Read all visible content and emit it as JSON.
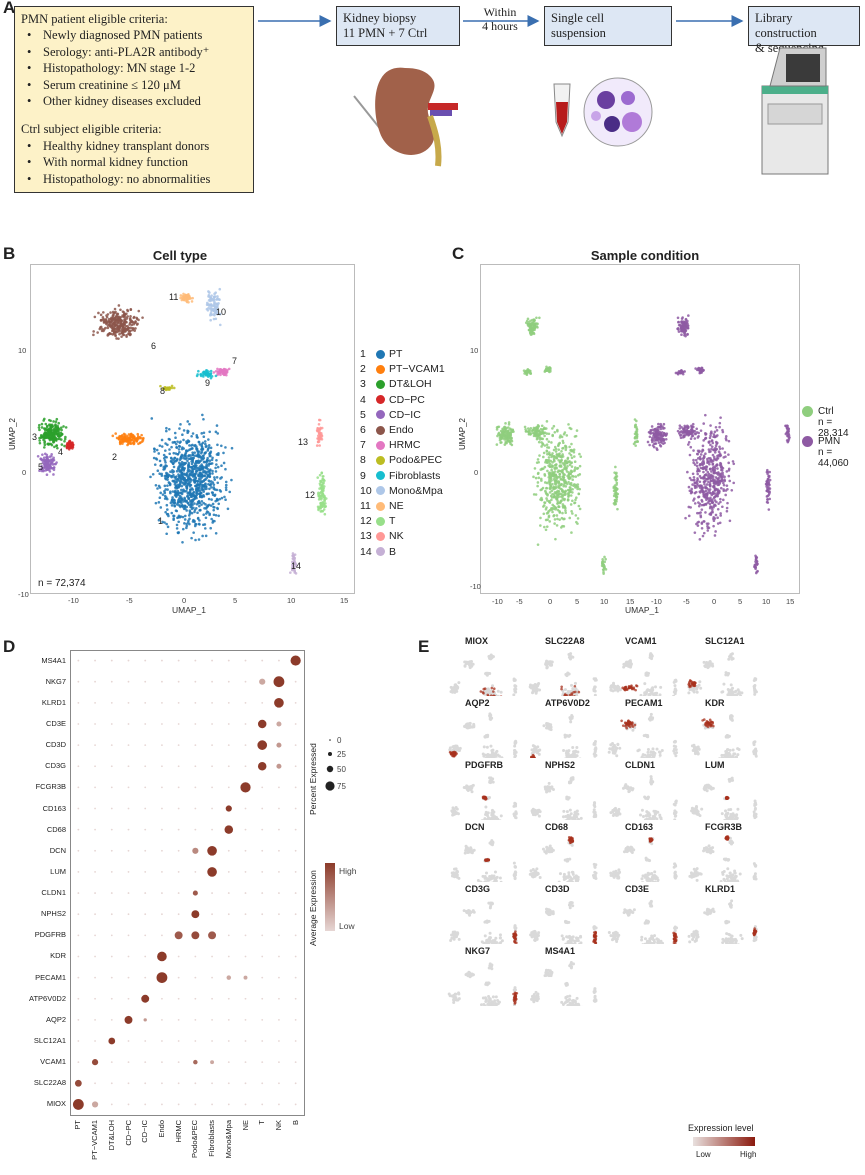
{
  "panels": {
    "a": "A",
    "b": "B",
    "c": "C",
    "d": "D",
    "e": "E"
  },
  "criteria": {
    "pmn_heading": "PMN patient eligible  criteria:",
    "pmn_items": [
      "Newly diagnosed PMN patients",
      "Serology: anti-PLA2R antibody⁺",
      "Histopathology:  MN stage 1-2",
      "Serum creatinine  ≤ 120 μM",
      "Other kidney diseases excluded"
    ],
    "ctrl_heading": "Ctrl subject eligible  criteria:",
    "ctrl_items": [
      "Healthy  kidney transplant donors",
      "With normal kidney function",
      "Histopathology:  no abnormalities"
    ]
  },
  "workflow": {
    "step1_line1": "Kidney biopsy",
    "step1_line2": "11 PMN + 7 Ctrl",
    "arrow_line1": "Within",
    "arrow_line2": "4 hours",
    "step2_line1": "Single cell",
    "step2_line2": "suspension",
    "step3_line1": "Library construction",
    "step3_line2": "& sequencing"
  },
  "umap_b": {
    "title": "Cell type",
    "xlabel": "UMAP_1",
    "ylabel": "UMAP_2",
    "n_label": "n = 72,374",
    "xticks": [
      "-10",
      "-5",
      "0",
      "5",
      "10",
      "15"
    ],
    "yticks": [
      "10",
      "0",
      "-10"
    ],
    "legend": [
      {
        "num": "1",
        "name": "PT",
        "color": "#1f77b4"
      },
      {
        "num": "2",
        "name": "PT−VCAM1",
        "color": "#ff7f0e"
      },
      {
        "num": "3",
        "name": "DT&LOH",
        "color": "#2ca02c"
      },
      {
        "num": "4",
        "name": "CD−PC",
        "color": "#d62728"
      },
      {
        "num": "5",
        "name": "CD−IC",
        "color": "#9467bd"
      },
      {
        "num": "6",
        "name": "Endo",
        "color": "#8c564b"
      },
      {
        "num": "7",
        "name": "HRMC",
        "color": "#e377c2"
      },
      {
        "num": "8",
        "name": "Podo&PEC",
        "color": "#bcbd22"
      },
      {
        "num": "9",
        "name": "Fibroblasts",
        "color": "#17becf"
      },
      {
        "num": "10",
        "name": "Mono&Mpa",
        "color": "#aec7e8"
      },
      {
        "num": "11",
        "name": "NE",
        "color": "#ffbb78"
      },
      {
        "num": "12",
        "name": "T",
        "color": "#98df8a"
      },
      {
        "num": "13",
        "name": "NK",
        "color": "#ff9896"
      },
      {
        "num": "14",
        "name": "B",
        "color": "#c5b0d5"
      }
    ]
  },
  "umap_c": {
    "title": "Sample condition",
    "xlabel": "UMAP_1",
    "ylabel": "UMAP_2",
    "xticks": [
      "-10",
      "-5",
      "0",
      "5",
      "10",
      "15",
      "-10",
      "-5",
      "0",
      "5",
      "10",
      "15"
    ],
    "yticks": [
      "10",
      "0",
      "-10"
    ],
    "legend": [
      {
        "name": "Ctrl",
        "n": "n = 28,314",
        "color": "#8fce7e"
      },
      {
        "name": "PMN",
        "n": "n = 44,060",
        "color": "#8e5aa3"
      }
    ]
  },
  "dotplot": {
    "genes": [
      "MS4A1",
      "NKG7",
      "KLRD1",
      "CD3E",
      "CD3D",
      "CD3G",
      "FCGR3B",
      "CD163",
      "CD68",
      "DCN",
      "LUM",
      "CLDN1",
      "NPHS2",
      "PDGFRB",
      "KDR",
      "PECAM1",
      "ATP6V0D2",
      "AQP2",
      "SLC12A1",
      "VCAM1",
      "SLC22A8",
      "MIOX"
    ],
    "cell_types": [
      "PT",
      "PT−VCAM1",
      "DT&LOH",
      "CD−PC",
      "CD−IC",
      "Endo",
      "HRMC",
      "Podo&PEC",
      "Fibroblasts",
      "Mono&Mpa",
      "NE",
      "T",
      "NK",
      "B"
    ],
    "size_legend_title": "Percent Expressed",
    "size_legend_values": [
      "0",
      "25",
      "50",
      "75"
    ],
    "color_legend_title": "Average Expression",
    "color_high": "High",
    "color_low": "Low",
    "color_high_hex": "#8c3b2a",
    "color_low_hex": "#e6d6d4"
  },
  "chart_data": {
    "type": "dotplot",
    "genes_bottom_to_top": [
      "MIOX",
      "SLC22A8",
      "VCAM1",
      "SLC12A1",
      "AQP2",
      "ATP6V0D2",
      "PECAM1",
      "KDR",
      "PDGFRB",
      "NPHS2",
      "CLDN1",
      "LUM",
      "DCN",
      "CD68",
      "CD163",
      "FCGR3B",
      "CD3G",
      "CD3D",
      "CD3E",
      "KLRD1",
      "NKG7",
      "MS4A1"
    ],
    "cell_types": [
      "PT",
      "PT−VCAM1",
      "DT&LOH",
      "CD−PC",
      "CD−IC",
      "Endo",
      "HRMC",
      "Podo&PEC",
      "Fibroblasts",
      "Mono&Mpa",
      "NE",
      "T",
      "NK",
      "B"
    ],
    "points": [
      {
        "gene": "MIOX",
        "cell": "PT",
        "pct": 80,
        "expr": 1.0
      },
      {
        "gene": "MIOX",
        "cell": "PT−VCAM1",
        "pct": 40,
        "expr": 0.3
      },
      {
        "gene": "SLC22A8",
        "cell": "PT",
        "pct": 45,
        "expr": 0.9
      },
      {
        "gene": "VCAM1",
        "cell": "PT−VCAM1",
        "pct": 40,
        "expr": 0.9
      },
      {
        "gene": "VCAM1",
        "cell": "Podo&PEC",
        "pct": 25,
        "expr": 0.7
      },
      {
        "gene": "VCAM1",
        "cell": "Fibroblasts",
        "pct": 20,
        "expr": 0.3
      },
      {
        "gene": "SLC12A1",
        "cell": "DT&LOH",
        "pct": 45,
        "expr": 1.0
      },
      {
        "gene": "AQP2",
        "cell": "CD−PC",
        "pct": 55,
        "expr": 1.0
      },
      {
        "gene": "AQP2",
        "cell": "CD−IC",
        "pct": 15,
        "expr": 0.4
      },
      {
        "gene": "ATP6V0D2",
        "cell": "CD−IC",
        "pct": 55,
        "expr": 1.0
      },
      {
        "gene": "PECAM1",
        "cell": "Endo",
        "pct": 80,
        "expr": 1.0
      },
      {
        "gene": "PECAM1",
        "cell": "Mono&Mpa",
        "pct": 25,
        "expr": 0.3
      },
      {
        "gene": "PECAM1",
        "cell": "NE",
        "pct": 20,
        "expr": 0.3
      },
      {
        "gene": "KDR",
        "cell": "Endo",
        "pct": 70,
        "expr": 1.0
      },
      {
        "gene": "PDGFRB",
        "cell": "HRMC",
        "pct": 55,
        "expr": 0.8
      },
      {
        "gene": "PDGFRB",
        "cell": "Podo&PEC",
        "pct": 55,
        "expr": 0.9
      },
      {
        "gene": "PDGFRB",
        "cell": "Fibroblasts",
        "pct": 55,
        "expr": 0.8
      },
      {
        "gene": "NPHS2",
        "cell": "Podo&PEC",
        "pct": 55,
        "expr": 1.0
      },
      {
        "gene": "CLDN1",
        "cell": "Podo&PEC",
        "pct": 30,
        "expr": 0.8
      },
      {
        "gene": "LUM",
        "cell": "Fibroblasts",
        "pct": 70,
        "expr": 1.0
      },
      {
        "gene": "DCN",
        "cell": "Podo&PEC",
        "pct": 40,
        "expr": 0.5
      },
      {
        "gene": "DCN",
        "cell": "Fibroblasts",
        "pct": 70,
        "expr": 1.0
      },
      {
        "gene": "CD68",
        "cell": "Mono&Mpa",
        "pct": 60,
        "expr": 1.0
      },
      {
        "gene": "CD163",
        "cell": "Mono&Mpa",
        "pct": 40,
        "expr": 1.0
      },
      {
        "gene": "FCGR3B",
        "cell": "NE",
        "pct": 75,
        "expr": 1.0
      },
      {
        "gene": "CD3G",
        "cell": "T",
        "pct": 60,
        "expr": 1.0
      },
      {
        "gene": "CD3G",
        "cell": "NK",
        "pct": 30,
        "expr": 0.4
      },
      {
        "gene": "CD3D",
        "cell": "T",
        "pct": 70,
        "expr": 1.0
      },
      {
        "gene": "CD3D",
        "cell": "NK",
        "pct": 30,
        "expr": 0.4
      },
      {
        "gene": "CD3E",
        "cell": "T",
        "pct": 60,
        "expr": 1.0
      },
      {
        "gene": "CD3E",
        "cell": "NK",
        "pct": 30,
        "expr": 0.3
      },
      {
        "gene": "KLRD1",
        "cell": "NK",
        "pct": 70,
        "expr": 1.0
      },
      {
        "gene": "NKG7",
        "cell": "T",
        "pct": 40,
        "expr": 0.3
      },
      {
        "gene": "NKG7",
        "cell": "NK",
        "pct": 80,
        "expr": 1.0
      },
      {
        "gene": "MS4A1",
        "cell": "B",
        "pct": 75,
        "expr": 1.0
      }
    ]
  },
  "featureplots": {
    "titles": [
      "MIOX",
      "SLC22A8",
      "VCAM1",
      "SLC12A1",
      "AQP2",
      "ATP6V0D2",
      "PECAM1",
      "KDR",
      "PDGFRB",
      "NPHS2",
      "CLDN1",
      "LUM",
      "DCN",
      "CD68",
      "CD163",
      "FCGR3B",
      "CD3G",
      "CD3D",
      "CD3E",
      "KLRD1",
      "NKG7",
      "MS4A1"
    ],
    "legend_title": "Expression level",
    "legend_low": "Low",
    "legend_high": "High"
  }
}
